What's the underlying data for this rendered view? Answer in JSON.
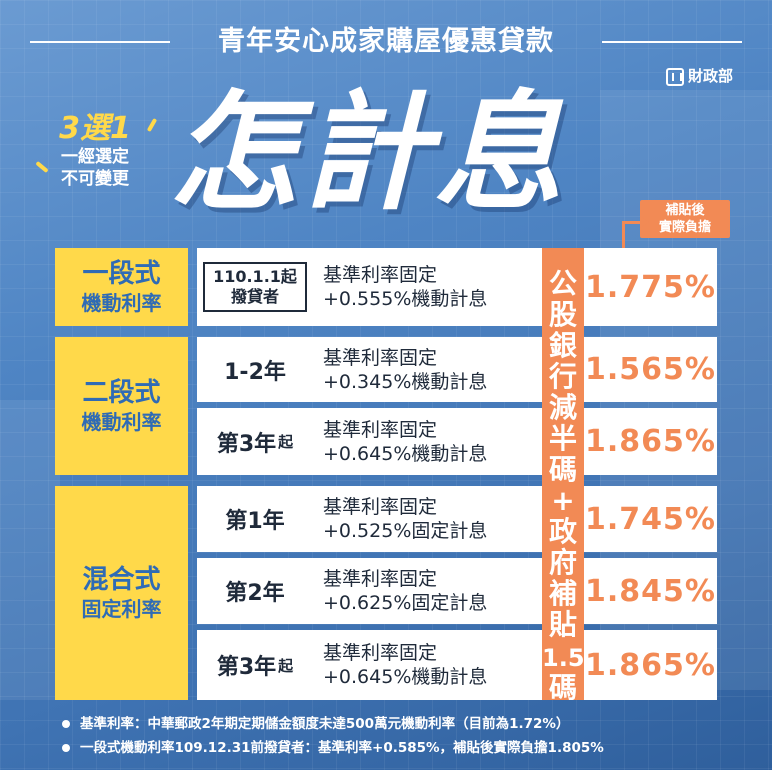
{
  "header": {
    "headline": "青年安心成家購屋優惠貸款",
    "ministry": "財政部",
    "big_title": "怎計息",
    "choose_big": "3選1",
    "choose_line1": "一經選定",
    "choose_line2": "不可變更",
    "after_note_line1": "補貼後",
    "after_note_line2": "實際負擔"
  },
  "subsidy_column": {
    "chars": [
      "公",
      "股",
      "銀",
      "行",
      "減",
      "半",
      "碼",
      "+",
      "政",
      "府",
      "補",
      "貼"
    ],
    "num": "1.5",
    "unit": "碼"
  },
  "table": {
    "groups": [
      {
        "type_main": "一段式",
        "type_sub": "機動利率",
        "rows": [
          {
            "period_line1": "110.1.1起",
            "period_line2": "撥貸者",
            "formula_line1": "基準利率固定",
            "formula_line2": "+0.555%機動計息",
            "rate": "1.775%"
          }
        ]
      },
      {
        "type_main": "二段式",
        "type_sub": "機動利率",
        "rows": [
          {
            "period": "1-2年",
            "period_suffix": "",
            "formula_line1": "基準利率固定",
            "formula_line2": "+0.345%機動計息",
            "rate": "1.565%"
          },
          {
            "period": "第3年",
            "period_suffix": "起",
            "formula_line1": "基準利率固定",
            "formula_line2": "+0.645%機動計息",
            "rate": "1.865%"
          }
        ]
      },
      {
        "type_main": "混合式",
        "type_sub": "固定利率",
        "rows": [
          {
            "period": "第1年",
            "period_suffix": "",
            "formula_line1": "基準利率固定",
            "formula_line2": "+0.525%固定計息",
            "rate": "1.745%"
          },
          {
            "period": "第2年",
            "period_suffix": "",
            "formula_line1": "基準利率固定",
            "formula_line2": "+0.625%固定計息",
            "rate": "1.845%"
          },
          {
            "period": "第3年",
            "period_suffix": "起",
            "formula_line1": "基準利率固定",
            "formula_line2": "+0.645%機動計息",
            "rate": "1.865%"
          }
        ]
      }
    ]
  },
  "notes": [
    "基準利率：中華郵政2年期定期儲金額度未達500萬元機動利率（目前為1.72%）",
    "一段式機動利率109.12.31前撥貸者：基準利率+0.585%，補貼後實際負擔1.805%"
  ],
  "colors": {
    "yellow": "#ffd94a",
    "orange": "#f28a55",
    "blue_text": "#2f6bb5"
  }
}
